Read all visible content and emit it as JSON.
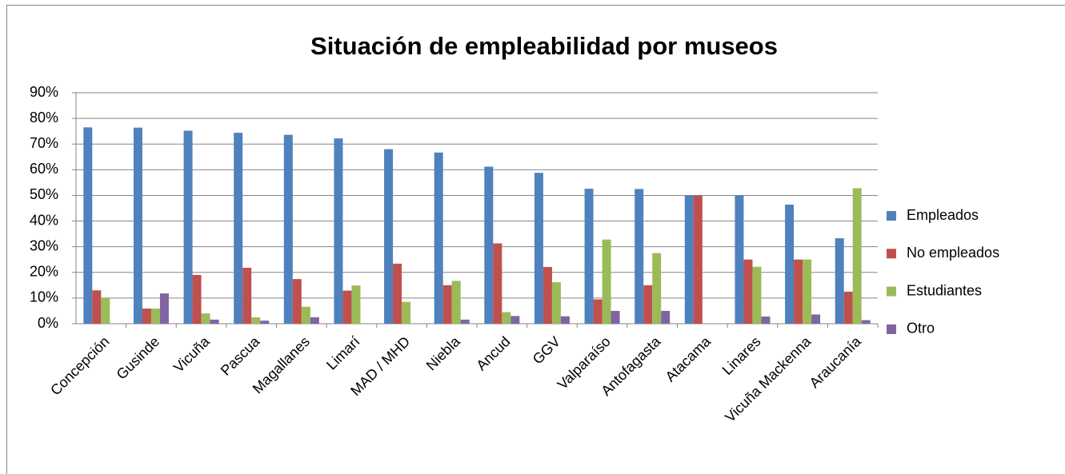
{
  "chart_data": {
    "type": "bar",
    "title": "Situación de empleabilidad por museos",
    "categories": [
      "Concepción",
      "Gusinde",
      "Vicuña",
      "Pascua",
      "Magallanes",
      "Limarí",
      "MAD / MHD",
      "Niebla",
      "Ancud",
      "GGV",
      "Valparaíso",
      "Antofagasta",
      "Atacama",
      "Linares",
      "Vicuña Mackenna",
      "Araucanía"
    ],
    "series": [
      {
        "name": "Empleados",
        "color": "#4f81bd",
        "values": [
          76.5,
          76.4,
          75.2,
          74.4,
          73.6,
          72.2,
          68,
          66.7,
          61.2,
          58.8,
          52.6,
          52.5,
          50,
          50,
          46.4,
          33.3
        ]
      },
      {
        "name": "No empleados",
        "color": "#c0504d",
        "values": [
          13,
          5.9,
          19,
          21.8,
          17.4,
          12.9,
          23.4,
          15,
          31.3,
          22.1,
          9.5,
          15,
          50,
          25,
          25,
          12.5
        ]
      },
      {
        "name": "Estudiantes",
        "color": "#9bbb59",
        "values": [
          10,
          5.9,
          4,
          2.5,
          6.6,
          14.9,
          8.5,
          16.7,
          4.5,
          16.2,
          32.8,
          27.5,
          0,
          22.2,
          25,
          52.8
        ]
      },
      {
        "name": "Otro",
        "color": "#8064a2",
        "values": [
          0,
          11.8,
          1.6,
          1.2,
          2.5,
          0,
          0,
          1.6,
          3,
          2.9,
          5,
          5,
          0,
          2.8,
          3.6,
          1.4
        ]
      }
    ],
    "ylim": [
      0,
      90
    ],
    "yticks": [
      {
        "value": 0,
        "label": "0%"
      },
      {
        "value": 10,
        "label": "10%"
      },
      {
        "value": 20,
        "label": "20%"
      },
      {
        "value": 30,
        "label": "30%"
      },
      {
        "value": 40,
        "label": "40%"
      },
      {
        "value": 50,
        "label": "50%"
      },
      {
        "value": 60,
        "label": "60%"
      },
      {
        "value": 70,
        "label": "70%"
      },
      {
        "value": 80,
        "label": "80%"
      },
      {
        "value": 90,
        "label": "90%"
      }
    ],
    "grid": true,
    "legend": "right"
  }
}
